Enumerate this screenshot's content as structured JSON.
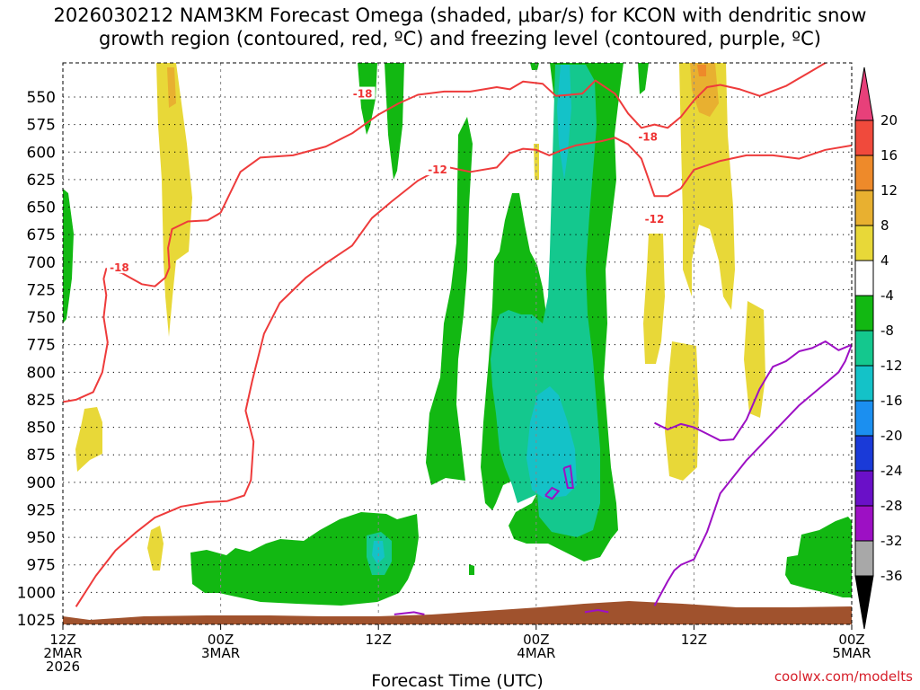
{
  "chart_data": {
    "type": "heatmap",
    "title_line1": "2026030212 NAM3KM Forecast Omega (shaded, μbar/s) for KCON with dendritic snow",
    "title_line2": "growth region (contoured, red, ºC) and freezing level (contoured, purple, ºC)",
    "xlabel": "Forecast Time (UTC)",
    "credit": "coolwx.com/modelts",
    "x_range_hours": [
      0,
      60
    ],
    "x_ticks": [
      {
        "hour": 0,
        "line1": "12Z",
        "line2": "2MAR",
        "line3": "2026"
      },
      {
        "hour": 12,
        "line1": "00Z",
        "line2": "3MAR",
        "line3": ""
      },
      {
        "hour": 24,
        "line1": "12Z",
        "line2": "",
        "line3": ""
      },
      {
        "hour": 36,
        "line1": "00Z",
        "line2": "4MAR",
        "line3": ""
      },
      {
        "hour": 48,
        "line1": "12Z",
        "line2": "",
        "line3": ""
      },
      {
        "hour": 60,
        "line1": "00Z",
        "line2": "5MAR",
        "line3": ""
      }
    ],
    "y_ticks": [
      "550",
      "575",
      "600",
      "625",
      "650",
      "675",
      "700",
      "725",
      "750",
      "775",
      "800",
      "825",
      "850",
      "875",
      "900",
      "925",
      "950",
      "975",
      "1000",
      "1025"
    ],
    "colorbar": {
      "labels": [
        "20",
        "16",
        "12",
        "8",
        "4",
        "-4",
        "-8",
        "-12",
        "-16",
        "-20",
        "-24",
        "-28",
        "-32",
        "-36"
      ],
      "colors": [
        "#e8407a",
        "#f04a3c",
        "#ee8a2a",
        "#e8b030",
        "#e8d838",
        "#ffffff",
        "#12b812",
        "#14c88e",
        "#14c2c8",
        "#1b8ff0",
        "#1a3ad8",
        "#6a10c8",
        "#9d10c4",
        "#a8a8a8",
        "#000000"
      ]
    },
    "contour_labels": [
      {
        "text": "-18",
        "hour": 4.3,
        "hpa": 706
      },
      {
        "text": "-18",
        "hour": 22.8,
        "hpa": 548
      },
      {
        "text": "-12",
        "hour": 28.5,
        "hpa": 617
      },
      {
        "text": "-18",
        "hour": 44.5,
        "hpa": 587
      },
      {
        "text": "-12",
        "hour": 45.0,
        "hpa": 662
      }
    ],
    "series": [
      {
        "name": "-18C contour (upper)",
        "hour": [
          12.0,
          13.5,
          15.0,
          17.5,
          20.0,
          22.0,
          24.0,
          25.5,
          27.0,
          29.0,
          31.0,
          33.0,
          34.0,
          35.0,
          36.5,
          37.5,
          39.5,
          40.5,
          42.0,
          43.0,
          44.0,
          45.0,
          46.0,
          47.0,
          48.0,
          49.0,
          50.0,
          51.5,
          53.0,
          55.0,
          57.0,
          59.0,
          60.0
        ],
        "hpa": [
          655,
          618,
          605,
          603,
          595,
          583,
          566,
          556,
          548,
          545,
          545,
          541,
          543,
          536,
          538,
          549,
          547,
          535,
          547,
          565,
          578,
          575,
          578,
          568,
          553,
          541,
          539,
          543,
          549,
          540,
          526,
          512,
          509
        ]
      },
      {
        "name": "-18C contour (lower)",
        "hour": [
          0.0,
          1.0,
          2.3,
          3.0,
          3.4,
          3.1,
          3.3,
          3.1,
          3.3,
          4.5,
          6.0,
          7.0,
          7.8,
          8.1,
          8.0,
          8.3,
          9.5,
          11.0,
          12.0
        ],
        "hpa": [
          827,
          825,
          818,
          800,
          773,
          750,
          730,
          715,
          706,
          710,
          720,
          722,
          714,
          705,
          687,
          670,
          663,
          662,
          655
        ]
      },
      {
        "name": "-12C contour",
        "hour": [
          1.0,
          2.5,
          4.0,
          5.5,
          7.0,
          9.0,
          11.0,
          12.5,
          13.8,
          14.3,
          14.5,
          13.9,
          14.4,
          15.3,
          16.5,
          18.5,
          20.0,
          22.0,
          23.5,
          25.0,
          27.0,
          29.0,
          31.0,
          33.0,
          34.0,
          35.0,
          36.0,
          37.0,
          38.0,
          39.0,
          40.0,
          41.0,
          42.0,
          43.0,
          44.0,
          45.0,
          46.0,
          47.0,
          48.0,
          50.0,
          52.0,
          54.0,
          56.0,
          58.0,
          60.0
        ],
        "hpa": [
          1013,
          985,
          962,
          946,
          932,
          922,
          918,
          917,
          912,
          898,
          863,
          835,
          808,
          765,
          737,
          714,
          701,
          685,
          660,
          645,
          626,
          613,
          618,
          614,
          601,
          597,
          598,
          603,
          598,
          594,
          592,
          590,
          587,
          593,
          606,
          640,
          640,
          633,
          616,
          608,
          603,
          603,
          606,
          598,
          594
        ]
      },
      {
        "name": "Freezing level (0C)",
        "hour": [
          45.0,
          46.0,
          47.0,
          48.0,
          49.0,
          50.0,
          51.0,
          52.0,
          53.0,
          54.0,
          55.0,
          56.0,
          57.0,
          58.0,
          59.0,
          60.0,
          59.5,
          59.0,
          58.0,
          56.0,
          54.0,
          52.0,
          50.0,
          49.0,
          48.0,
          47.0,
          46.5,
          46.0,
          45.0
        ],
        "hpa": [
          846,
          852,
          847,
          850,
          856,
          862,
          861,
          843,
          815,
          795,
          790,
          781,
          778,
          772,
          780,
          775,
          790,
          800,
          810,
          830,
          855,
          880,
          910,
          945,
          970,
          975,
          980,
          990,
          1012
        ]
      }
    ]
  }
}
